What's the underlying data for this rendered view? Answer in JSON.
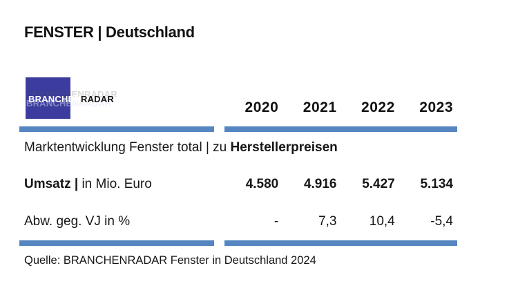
{
  "header": {
    "title": "FENSTER | Deutschland"
  },
  "logo": {
    "part1": "BRANCHEN",
    "part2": "RADAR",
    "ghost": "BRANCHENRADAR",
    "square_color": "#3c3c9f"
  },
  "colors": {
    "divider_blue": "#5586c2",
    "logo_blue": "#3c3c9f",
    "text": "#161616",
    "background": "#ffffff"
  },
  "table": {
    "year_headers": [
      "2020",
      "2021",
      "2022",
      "2023"
    ],
    "section_title_regular": "Marktentwicklung Fenster total | zu ",
    "section_title_bold": "Herstellerpreisen",
    "rows": [
      {
        "label_bold": "Umsatz | ",
        "label_regular": "in Mio. Euro",
        "values": [
          "4.580",
          "4.916",
          "5.427",
          "5.134"
        ]
      },
      {
        "label_bold": "",
        "label_regular": "Abw. geg. VJ in %",
        "values": [
          "-",
          "7,3",
          "10,4",
          "-5,4"
        ]
      }
    ]
  },
  "source": "Quelle: BRANCHENRADAR Fenster in Deutschland 2024",
  "chart_data": {
    "type": "table",
    "title": "Marktentwicklung Fenster total | zu Herstellerpreisen",
    "columns": [
      "2020",
      "2021",
      "2022",
      "2023"
    ],
    "rows": [
      {
        "label": "Umsatz | in Mio. Euro",
        "unit": "Mio. Euro",
        "values": [
          4580,
          4916,
          5427,
          5134
        ]
      },
      {
        "label": "Abw. geg. VJ in %",
        "unit": "%",
        "values": [
          null,
          7.3,
          10.4,
          -5.4
        ]
      }
    ],
    "source": "Quelle: BRANCHENRADAR Fenster in Deutschland 2024"
  }
}
